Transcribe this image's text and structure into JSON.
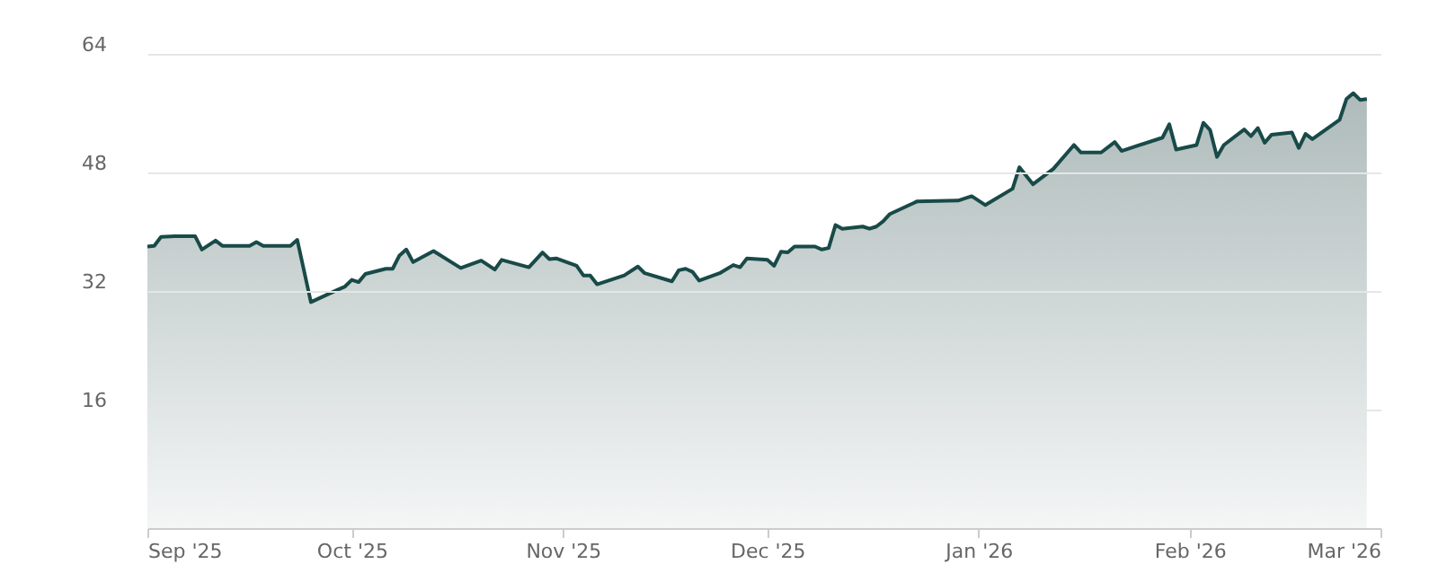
{
  "chart_data": {
    "type": "area",
    "color": "#184a48",
    "x": [
      "2025-09-01",
      "2025-09-02",
      "2025-09-03",
      "2025-09-05",
      "2025-09-08",
      "2025-09-09",
      "2025-09-11",
      "2025-09-12",
      "2025-09-16",
      "2025-09-17",
      "2025-09-18",
      "2025-09-22",
      "2025-09-23",
      "2025-09-25",
      "2025-09-29",
      "2025-09-30",
      "2025-10-01",
      "2025-10-02",
      "2025-10-03",
      "2025-10-06",
      "2025-10-07",
      "2025-10-08",
      "2025-10-09",
      "2025-10-10",
      "2025-10-13",
      "2025-10-17",
      "2025-10-20",
      "2025-10-22",
      "2025-10-23",
      "2025-10-27",
      "2025-10-29",
      "2025-10-30",
      "2025-10-31",
      "2025-11-03",
      "2025-11-04",
      "2025-11-05",
      "2025-11-06",
      "2025-11-10",
      "2025-11-12",
      "2025-11-13",
      "2025-11-17",
      "2025-11-18",
      "2025-11-19",
      "2025-11-20",
      "2025-11-21",
      "2025-11-24",
      "2025-11-26",
      "2025-11-27",
      "2025-11-28",
      "2025-12-01",
      "2025-12-02",
      "2025-12-03",
      "2025-12-04",
      "2025-12-05",
      "2025-12-08",
      "2025-12-09",
      "2025-12-10",
      "2025-12-11",
      "2025-12-12",
      "2025-12-15",
      "2025-12-16",
      "2025-12-17",
      "2025-12-18",
      "2025-12-19",
      "2025-12-23",
      "2025-12-29",
      "2025-12-31",
      "2026-01-02",
      "2026-01-06",
      "2026-01-07",
      "2026-01-09",
      "2026-01-12",
      "2026-01-15",
      "2026-01-16",
      "2026-01-19",
      "2026-01-21",
      "2026-01-22",
      "2026-01-28",
      "2026-01-29",
      "2026-01-30",
      "2026-02-02",
      "2026-02-03",
      "2026-02-04",
      "2026-02-05",
      "2026-02-06",
      "2026-02-09",
      "2026-02-10",
      "2026-02-11",
      "2026-02-12",
      "2026-02-13",
      "2026-02-16",
      "2026-02-17",
      "2026-02-18",
      "2026-02-19",
      "2026-02-23",
      "2026-02-24",
      "2026-02-25",
      "2026-02-26",
      "2026-02-27"
    ],
    "values": [
      38.0,
      38.1,
      39.3,
      39.4,
      39.4,
      37.6,
      38.8,
      38.1,
      38.1,
      38.6,
      38.1,
      38.1,
      38.9,
      30.5,
      32.2,
      32.6,
      33.5,
      33.2,
      34.3,
      35.0,
      35.0,
      36.8,
      37.6,
      35.9,
      37.4,
      35.1,
      36.1,
      34.9,
      36.2,
      35.2,
      37.2,
      36.3,
      36.4,
      35.4,
      34.1,
      34.1,
      32.9,
      34.1,
      35.3,
      34.4,
      33.3,
      34.8,
      35.0,
      34.6,
      33.4,
      34.4,
      35.5,
      35.2,
      36.4,
      36.2,
      35.4,
      37.3,
      37.2,
      38.0,
      38.0,
      37.6,
      37.8,
      40.9,
      40.4,
      40.7,
      40.4,
      40.7,
      41.4,
      42.4,
      44.1,
      44.2,
      44.8,
      43.6,
      45.8,
      48.7,
      46.4,
      48.5,
      51.7,
      50.7,
      50.7,
      52.1,
      50.9,
      52.7,
      54.5,
      51.1,
      51.7,
      54.7,
      53.7,
      50.1,
      51.7,
      53.8,
      52.9,
      54.0,
      52.0,
      53.1,
      53.4,
      51.3,
      53.2,
      52.5,
      55.1,
      57.9,
      58.7,
      57.8,
      57.9
    ],
    "xlim": [
      "2025-09-01",
      "2026-03-01"
    ],
    "xticks": [
      {
        "value": "2025-09-01",
        "label": "Sep '25"
      },
      {
        "value": "2025-10-01",
        "label": "Oct '25"
      },
      {
        "value": "2025-11-01",
        "label": "Nov '25"
      },
      {
        "value": "2025-12-01",
        "label": "Dec '25"
      },
      {
        "value": "2026-01-01",
        "label": "Jan '26"
      },
      {
        "value": "2026-02-01",
        "label": "Feb '26"
      },
      {
        "value": "2026-03-01",
        "label": "Mar '26"
      }
    ],
    "ylim": [
      0,
      64
    ],
    "yticks": [
      16,
      32,
      48,
      64
    ],
    "grid": "y",
    "line_style": "solid"
  }
}
